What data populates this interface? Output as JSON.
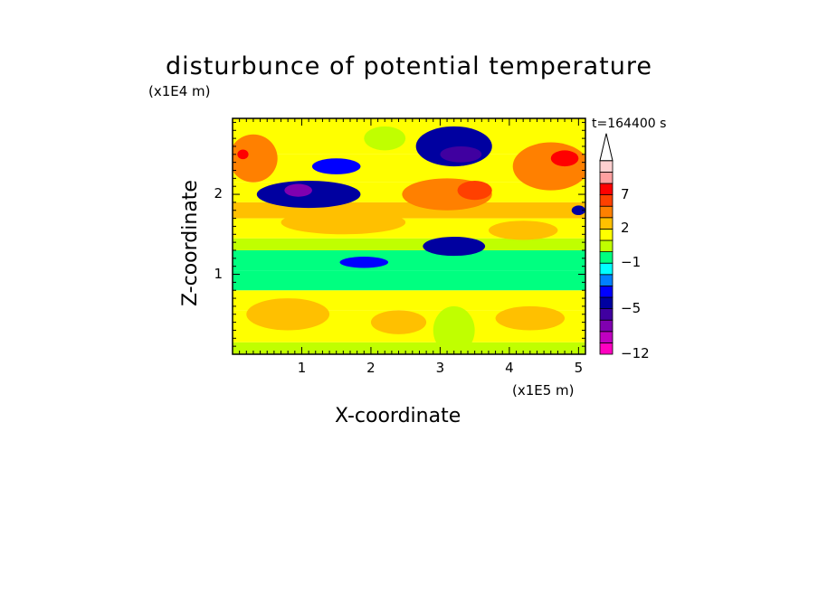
{
  "chart_data": {
    "type": "heatmap",
    "title": "disturbunce of potential temperature",
    "xlabel": "X-coordinate",
    "ylabel": "Z-coordinate",
    "x_unit": "(x1E5 m)",
    "z_unit": "(x1E4 m)",
    "time_label": "t=164400 s",
    "xlim": [
      0,
      5.1
    ],
    "ylim": [
      0,
      2.95
    ],
    "x_ticks": [
      "1",
      "2",
      "3",
      "4",
      "5"
    ],
    "y_ticks": [
      "1",
      "2"
    ],
    "colorbar": {
      "tick_labels": [
        "7",
        "2",
        "−1",
        "−5",
        "−12"
      ],
      "levels": [
        -12,
        -10,
        -8,
        -6,
        -5,
        -4,
        -3,
        -2,
        -1,
        0,
        1,
        2,
        3,
        5,
        7,
        9,
        11
      ],
      "colors": [
        "#ff00c0",
        "#c000c0",
        "#8000b0",
        "#4000a0",
        "#0000a0",
        "#0000ff",
        "#0080ff",
        "#00ffff",
        "#00ff80",
        "#c0ff00",
        "#ffff00",
        "#ffc000",
        "#ff8000",
        "#ff4000",
        "#ff0000",
        "#ffa0a0",
        "#ffd0d0"
      ],
      "extend": "max"
    },
    "bands": [
      {
        "zmin": 0.0,
        "zmax": 0.15,
        "value": 0.5
      },
      {
        "zmin": 0.15,
        "zmax": 0.55,
        "value": 1.5
      },
      {
        "zmin": 0.55,
        "zmax": 0.8,
        "value": 1.0
      },
      {
        "zmin": 0.8,
        "zmax": 1.05,
        "value": -0.5
      },
      {
        "zmin": 1.05,
        "zmax": 1.3,
        "value": -0.5
      },
      {
        "zmin": 1.3,
        "zmax": 1.45,
        "value": 0.3
      },
      {
        "zmin": 1.45,
        "zmax": 1.7,
        "value": 1.5
      },
      {
        "zmin": 1.7,
        "zmax": 1.9,
        "value": 2.5
      },
      {
        "zmin": 1.9,
        "zmax": 2.15,
        "value": 1.0
      },
      {
        "zmin": 2.15,
        "zmax": 2.5,
        "value": 1.5
      },
      {
        "zmin": 2.5,
        "zmax": 2.95,
        "value": 1.5
      }
    ],
    "features": [
      {
        "x": 1.1,
        "z": 2.0,
        "rx": 0.75,
        "rz": 0.17,
        "value": -5
      },
      {
        "x": 0.95,
        "z": 2.05,
        "rx": 0.2,
        "rz": 0.08,
        "value": -8
      },
      {
        "x": 1.5,
        "z": 2.35,
        "rx": 0.35,
        "rz": 0.1,
        "value": -4
      },
      {
        "x": 3.2,
        "z": 2.6,
        "rx": 0.55,
        "rz": 0.25,
        "value": -5
      },
      {
        "x": 3.3,
        "z": 2.5,
        "rx": 0.3,
        "rz": 0.1,
        "value": -6
      },
      {
        "x": 3.2,
        "z": 1.35,
        "rx": 0.45,
        "rz": 0.12,
        "value": -5
      },
      {
        "x": 1.9,
        "z": 1.15,
        "rx": 0.35,
        "rz": 0.07,
        "value": -4
      },
      {
        "x": 3.1,
        "z": 2.0,
        "rx": 0.65,
        "rz": 0.2,
        "value": 3
      },
      {
        "x": 3.5,
        "z": 2.05,
        "rx": 0.25,
        "rz": 0.12,
        "value": 5
      },
      {
        "x": 4.6,
        "z": 2.35,
        "rx": 0.55,
        "rz": 0.3,
        "value": 3
      },
      {
        "x": 4.8,
        "z": 2.45,
        "rx": 0.2,
        "rz": 0.1,
        "value": 7
      },
      {
        "x": 0.3,
        "z": 2.45,
        "rx": 0.35,
        "rz": 0.3,
        "value": 3
      },
      {
        "x": 0.15,
        "z": 2.5,
        "rx": 0.08,
        "rz": 0.06,
        "value": 7
      },
      {
        "x": 1.6,
        "z": 1.65,
        "rx": 0.9,
        "rz": 0.15,
        "value": 2
      },
      {
        "x": 4.2,
        "z": 1.55,
        "rx": 0.5,
        "rz": 0.12,
        "value": 2
      },
      {
        "x": 5.0,
        "z": 1.8,
        "rx": 0.1,
        "rz": 0.06,
        "value": -5
      },
      {
        "x": 2.2,
        "z": 2.7,
        "rx": 0.3,
        "rz": 0.15,
        "value": 0.5
      },
      {
        "x": 0.8,
        "z": 0.5,
        "rx": 0.6,
        "rz": 0.2,
        "value": 2
      },
      {
        "x": 2.4,
        "z": 0.4,
        "rx": 0.4,
        "rz": 0.15,
        "value": 2
      },
      {
        "x": 4.3,
        "z": 0.45,
        "rx": 0.5,
        "rz": 0.15,
        "value": 2
      },
      {
        "x": 3.2,
        "z": 0.3,
        "rx": 0.3,
        "rz": 0.3,
        "value": 0
      }
    ]
  }
}
